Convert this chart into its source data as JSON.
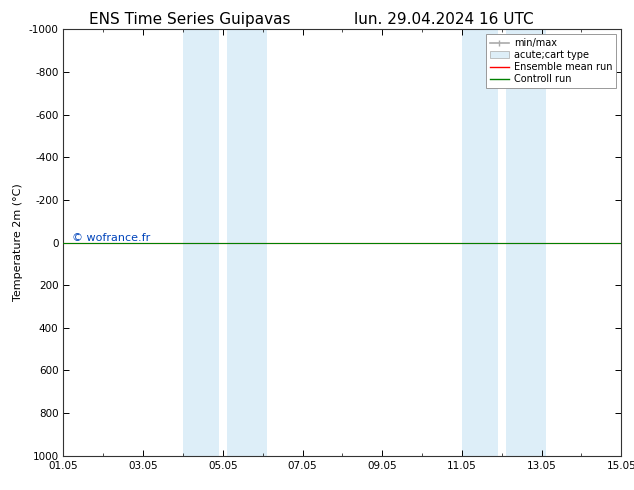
{
  "title": "ENS Time Series Guipavas",
  "title2": "lun. 29.04.2024 16 UTC",
  "ylabel": "Temperature 2m (°C)",
  "ylim_top": -1000,
  "ylim_bottom": 1000,
  "yticks": [
    -1000,
    -800,
    -600,
    -400,
    -200,
    0,
    200,
    400,
    600,
    800,
    1000
  ],
  "xlim": [
    0,
    14
  ],
  "xtick_positions": [
    0,
    2,
    4,
    6,
    8,
    10,
    12,
    14
  ],
  "xtick_labels": [
    "01.05",
    "03.05",
    "05.05",
    "07.05",
    "09.05",
    "11.05",
    "13.05",
    "15.05"
  ],
  "shaded_regions": [
    [
      3.0,
      3.9
    ],
    [
      4.1,
      5.1
    ],
    [
      10.0,
      10.9
    ],
    [
      11.1,
      12.1
    ]
  ],
  "shaded_color": "#ddeef8",
  "green_line_y": 0,
  "red_line_y": 0,
  "watermark": "© wofrance.fr",
  "watermark_color": "#0044bb",
  "background_color": "#ffffff",
  "legend_entries": [
    "min/max",
    "acute;cart type",
    "Ensemble mean run",
    "Controll run"
  ],
  "minmax_color": "#aaaaaa",
  "acute_color": "#ddeef8",
  "ensemble_color": "#ff0000",
  "control_color": "#008000",
  "title_fontsize": 11,
  "axis_fontsize": 8,
  "tick_fontsize": 7.5,
  "watermark_fontsize": 8,
  "legend_fontsize": 7
}
